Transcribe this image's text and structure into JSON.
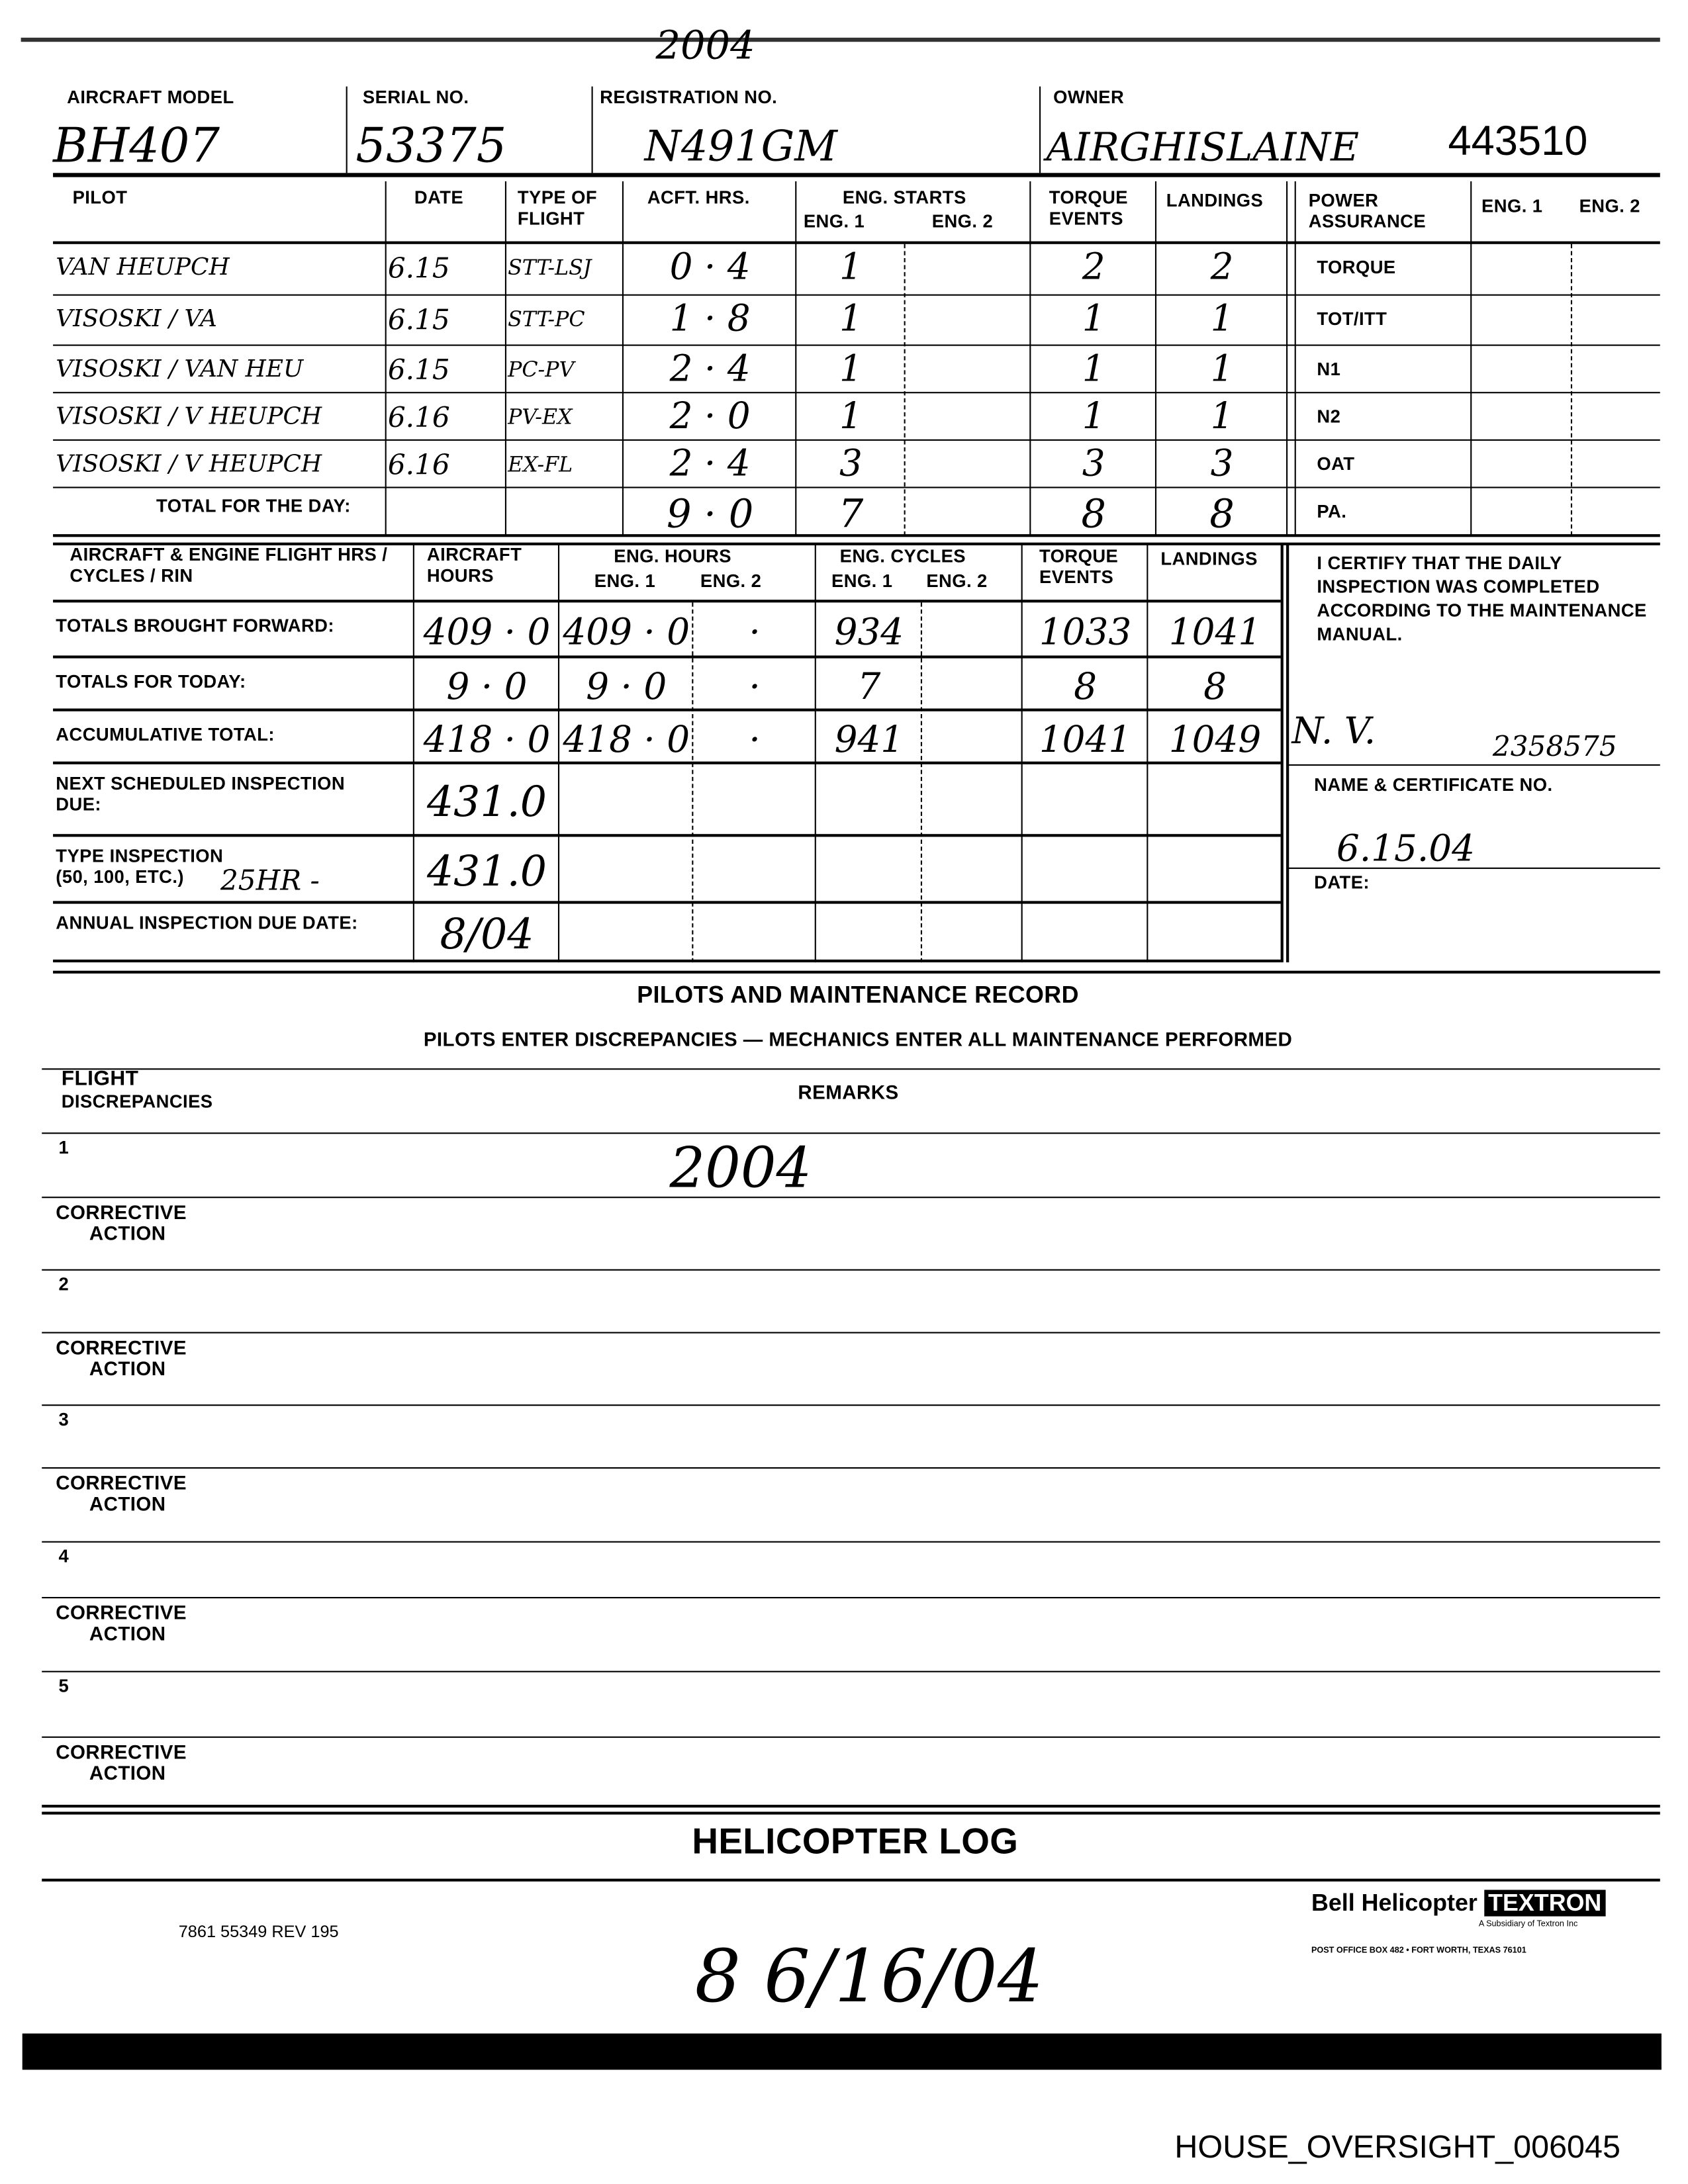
{
  "top_annotation": "2004",
  "header": {
    "aircraft_model_label": "AIRCRAFT MODEL",
    "aircraft_model": "BH407",
    "serial_no_label": "SERIAL NO.",
    "serial_no": "53375",
    "registration_label": "REGISTRATION NO.",
    "registration": "N491GM",
    "owner_label": "OWNER",
    "owner": "AIRGHISLAINE",
    "owner_number": "443510"
  },
  "pilot_table": {
    "columns": [
      "PILOT",
      "DATE",
      "TYPE OF FLIGHT",
      "ACFT. HRS.",
      "ENG. STARTS",
      "ENG. 1",
      "ENG. 2",
      "TORQUE EVENTS",
      "LANDINGS",
      "POWER ASSURANCE",
      "ENG. 1",
      "ENG. 2"
    ],
    "rows": [
      {
        "pilot": "VAN HEUPCH",
        "date": "6.15",
        "type": "STT-LSJ",
        "hrs": "0 · 4",
        "eng1": "1",
        "eng2": "",
        "torque": "2",
        "landings": "2"
      },
      {
        "pilot": "VISOSKI / VA",
        "date": "6.15",
        "type": "STT-PC",
        "hrs": "1 · 8",
        "eng1": "1",
        "eng2": "",
        "torque": "1",
        "landings": "1"
      },
      {
        "pilot": "VISOSKI / VAN HEU",
        "date": "6.15",
        "type": "PC-PV",
        "hrs": "2 · 4",
        "eng1": "1",
        "eng2": "",
        "torque": "1",
        "landings": "1"
      },
      {
        "pilot": "VISOSKI / V HEUPCH",
        "date": "6.16",
        "type": "PV-EX",
        "hrs": "2 · 0",
        "eng1": "1",
        "eng2": "",
        "torque": "1",
        "landings": "1"
      },
      {
        "pilot": "VISOSKI / V HEUPCH",
        "date": "6.16",
        "type": "EX-FL",
        "hrs": "2 · 4",
        "eng1": "3",
        "eng2": "",
        "torque": "3",
        "landings": "3"
      }
    ],
    "total_label": "TOTAL FOR THE DAY:",
    "total": {
      "hrs": "9 · 0",
      "eng1": "7",
      "torque": "8",
      "landings": "8"
    },
    "power_assurance_items": [
      "TORQUE",
      "TOT/ITT",
      "N1",
      "N2",
      "OAT",
      "PA."
    ]
  },
  "totals_table": {
    "columns": [
      "AIRCRAFT & ENGINE FLIGHT HRS / CYCLES / RIN",
      "AIRCRAFT HOURS",
      "ENG. HOURS",
      "ENG. 1",
      "ENG. 2",
      "ENG. CYCLES",
      "ENG. 1",
      "ENG. 2",
      "TORQUE EVENTS",
      "LANDINGS"
    ],
    "rows": [
      {
        "label": "TOTALS BROUGHT FORWARD:",
        "acft": "409 · 0",
        "eh1": "409 · 0",
        "eh2": "·",
        "ec1": "934",
        "ec2": "",
        "torque": "1033",
        "landings": "1041"
      },
      {
        "label": "TOTALS FOR TODAY:",
        "acft": "9 · 0",
        "eh1": "9 · 0",
        "eh2": "·",
        "ec1": "7",
        "ec2": "",
        "torque": "8",
        "landings": "8"
      },
      {
        "label": "ACCUMULATIVE TOTAL:",
        "acft": "418 · 0",
        "eh1": "418 · 0",
        "eh2": "·",
        "ec1": "941",
        "ec2": "",
        "torque": "1041",
        "landings": "1049"
      },
      {
        "label": "NEXT SCHEDULED INSPECTION DUE:",
        "acft": "431.0"
      },
      {
        "label": "TYPE INSPECTION (50, 100, ETC.)",
        "extra": "25HR -",
        "acft": "431.0"
      },
      {
        "label": "ANNUAL INSPECTION DUE DATE:",
        "acft": "8/04"
      }
    ],
    "certify_text": "I CERTIFY THAT THE DAILY INSPECTION WAS COMPLETED ACCORDING TO THE MAINTENANCE MANUAL.",
    "signature": "N. V.",
    "certificate_no": "2358575",
    "name_cert_label": "NAME & CERTIFICATE NO.",
    "date_value": "6.15.04",
    "date_label": "DATE:"
  },
  "record": {
    "title": "PILOTS AND MAINTENANCE RECORD",
    "subtitle": "PILOTS ENTER DISCREPANCIES — MECHANICS ENTER ALL MAINTENANCE PERFORMED",
    "flight_label": "FLIGHT",
    "discrepancies_label": "DISCREPANCIES",
    "remarks_label": "REMARKS",
    "corrective_label_1": "CORRECTIVE",
    "corrective_label_2": "ACTION",
    "items": [
      "1",
      "2",
      "3",
      "4",
      "5"
    ],
    "remark_1": "2004"
  },
  "footer": {
    "title": "HELICOPTER LOG",
    "form_no": "7861 55349 REV 195",
    "handwritten": "8  6/16/04",
    "brand": "Bell Helicopter",
    "brand_box": "TEXTRON",
    "subsidiary": "A Subsidiary of Textron Inc",
    "address": "POST OFFICE BOX 482 • FORT WORTH, TEXAS 76101",
    "bates": "HOUSE_OVERSIGHT_006045"
  }
}
